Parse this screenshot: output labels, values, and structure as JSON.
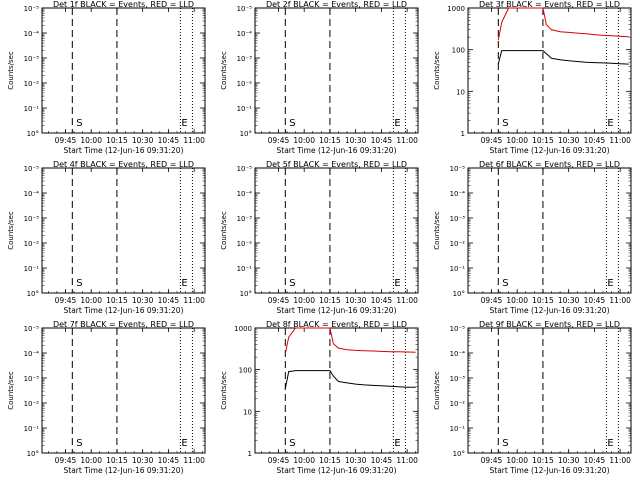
{
  "panels_common": {
    "xlabel": "Start Time (12-Jun-16 09:31:20)",
    "ylabel": "Counts/sec",
    "x_ticks": [
      "09:45",
      "10:00",
      "10:15",
      "10:30",
      "10:45",
      "11:00"
    ],
    "y_ticks_small": [
      "10°",
      "10⁻¹",
      "10⁻²",
      "10⁻³",
      "10⁻⁴",
      "10⁻⁵"
    ],
    "y_ticks_large": [
      "1",
      "10",
      "100",
      "1000"
    ],
    "markers": {
      "start": "S",
      "end": "E"
    },
    "colors": {
      "events": "#000000",
      "lld": "#dd0000",
      "axes": "#000000"
    }
  },
  "chart_data": [
    {
      "type": "line",
      "title": "Det 1f BLACK = Events, RED = LLD",
      "has_data": false,
      "yscale": "log",
      "ylim": [
        1,
        100000
      ]
    },
    {
      "type": "line",
      "title": "Det 2f BLACK = Events, RED = LLD",
      "has_data": false,
      "yscale": "log",
      "ylim": [
        1,
        100000
      ]
    },
    {
      "type": "line",
      "title": "Det 3f BLACK = Events, RED = LLD",
      "has_data": true,
      "yscale": "log",
      "ylim": [
        1,
        1000
      ],
      "x": [
        "09:49",
        "09:51",
        "09:55",
        "10:00",
        "10:05",
        "10:10",
        "10:15",
        "10:17",
        "10:20",
        "10:25",
        "10:30",
        "10:35",
        "10:40",
        "10:45",
        "10:50",
        "10:55",
        "11:00",
        "11:05"
      ],
      "series": [
        {
          "name": "Events",
          "color": "#000000",
          "values": [
            45,
            95,
            95,
            95,
            95,
            95,
            95,
            80,
            62,
            57,
            54,
            52,
            50,
            49,
            48,
            47,
            46,
            45
          ]
        },
        {
          "name": "LLD",
          "color": "#dd0000",
          "values": [
            170,
            450,
            1000,
            1000,
            1000,
            1000,
            1000,
            400,
            300,
            270,
            260,
            250,
            240,
            230,
            220,
            215,
            210,
            205
          ]
        }
      ]
    },
    {
      "type": "line",
      "title": "Det 4f BLACK = Events, RED = LLD",
      "has_data": false,
      "yscale": "log",
      "ylim": [
        1,
        100000
      ]
    },
    {
      "type": "line",
      "title": "Det 5f BLACK = Events, RED = LLD",
      "has_data": false,
      "yscale": "log",
      "ylim": [
        1,
        100000
      ]
    },
    {
      "type": "line",
      "title": "Det 6f BLACK = Events, RED = LLD",
      "has_data": false,
      "yscale": "log",
      "ylim": [
        1,
        100000
      ]
    },
    {
      "type": "line",
      "title": "Det 7f BLACK = Events, RED = LLD",
      "has_data": false,
      "yscale": "log",
      "ylim": [
        1,
        100000
      ]
    },
    {
      "type": "line",
      "title": "Det 8f BLACK = Events, RED = LLD",
      "has_data": true,
      "yscale": "log",
      "ylim": [
        1,
        1000
      ],
      "x": [
        "09:49",
        "09:51",
        "09:55",
        "10:00",
        "10:05",
        "10:10",
        "10:15",
        "10:17",
        "10:20",
        "10:25",
        "10:30",
        "10:35",
        "10:40",
        "10:45",
        "10:50",
        "10:55",
        "11:00",
        "11:05"
      ],
      "series": [
        {
          "name": "Events",
          "color": "#000000",
          "values": [
            35,
            90,
            95,
            95,
            95,
            95,
            95,
            70,
            52,
            48,
            45,
            43,
            42,
            41,
            40,
            39,
            38,
            38
          ]
        },
        {
          "name": "LLD",
          "color": "#dd0000",
          "values": [
            240,
            600,
            1000,
            1000,
            1000,
            1000,
            1000,
            420,
            330,
            300,
            290,
            285,
            280,
            275,
            270,
            268,
            265,
            262
          ]
        }
      ]
    },
    {
      "type": "line",
      "title": "Det 9f BLACK = Events, RED = LLD",
      "has_data": false,
      "yscale": "log",
      "ylim": [
        1,
        100000
      ]
    }
  ]
}
